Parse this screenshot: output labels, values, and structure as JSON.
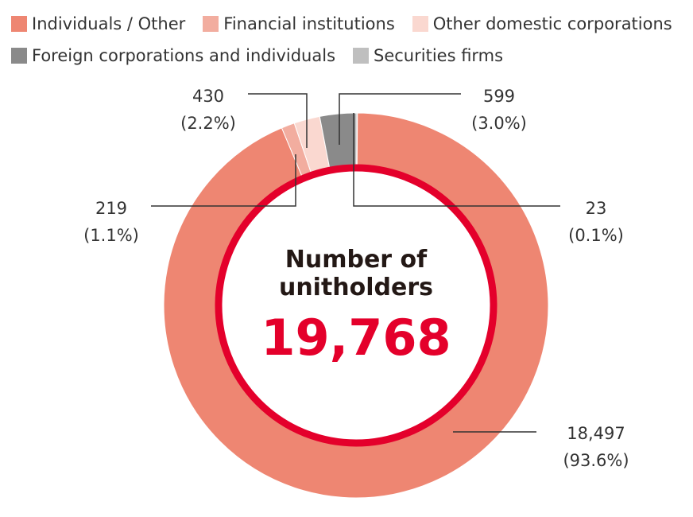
{
  "chart_data": {
    "type": "pie",
    "series": [
      {
        "name": "Individuals / Other",
        "value": 18497,
        "percent_label": "(93.6%)",
        "value_label": "18,497",
        "color": "#ee8672"
      },
      {
        "name": "Financial institutions",
        "value": 219,
        "percent_label": "(1.1%)",
        "value_label": "219",
        "color": "#f2ad9f"
      },
      {
        "name": "Other domestic corporations",
        "value": 430,
        "percent_label": "(2.2%)",
        "value_label": "430",
        "color": "#fad8d0"
      },
      {
        "name": "Foreign corporations and individuals",
        "value": 599,
        "percent_label": "(3.0%)",
        "value_label": "599",
        "color": "#8a8a8a"
      },
      {
        "name": "Securities firms",
        "value": 23,
        "percent_label": "(0.1%)",
        "value_label": "23",
        "color": "#bfbfbf"
      }
    ],
    "center": {
      "title_line1": "Number of",
      "title_line2": "unitholders",
      "total": "19,768"
    },
    "legend_position": "top"
  },
  "colors": {
    "accent_ring": "#e4002b",
    "leader_line": "#333333"
  }
}
